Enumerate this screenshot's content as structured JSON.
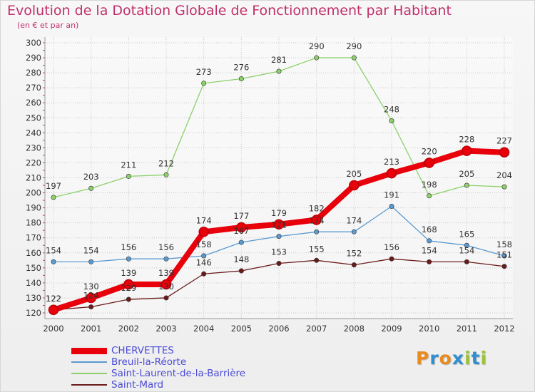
{
  "title": "Evolution de la Dotation Globale de Fonctionnement par Habitant",
  "subtitle": "(en € et par an)",
  "logo": {
    "letters": [
      "P",
      "r",
      "o",
      "x",
      "i",
      "t",
      "i"
    ],
    "colors": [
      "#e98b21",
      "#2f8fcf",
      "#e98b21",
      "#2f8fcf",
      "#9bc43d",
      "#2f8fcf",
      "#9bc43d"
    ]
  },
  "chart_data": {
    "type": "line",
    "title": "Evolution de la Dotation Globale de Fonctionnement par Habitant",
    "subtitle": "(en € et par an)",
    "x": [
      "2000",
      "2001",
      "2002",
      "2003",
      "2004",
      "2005",
      "2006",
      "2007",
      "2008",
      "2009",
      "2010",
      "2011",
      "2012"
    ],
    "ylim": [
      120,
      300
    ],
    "yticks": [
      120,
      130,
      140,
      150,
      160,
      170,
      180,
      190,
      200,
      210,
      220,
      230,
      240,
      250,
      260,
      270,
      280,
      290,
      300
    ],
    "grid": true,
    "legend_position": "bottom-left",
    "series": [
      {
        "name": "CHERVETTES",
        "color": "#e8000b",
        "values": [
          122,
          130,
          139,
          139,
          174,
          177,
          179,
          182,
          205,
          213,
          220,
          228,
          227
        ],
        "labels": [
          "122",
          "130",
          "139",
          "139",
          "174",
          "177",
          "179",
          "182",
          "205",
          "213",
          "220",
          "228",
          "227"
        ]
      },
      {
        "name": "Breuil-la-Réorte",
        "color": "#5a9ad0",
        "values": [
          154,
          154,
          156,
          156,
          158,
          167,
          171,
          174,
          174,
          191,
          168,
          165,
          158
        ],
        "labels": [
          "154",
          "154",
          "156",
          "156",
          "158",
          "167",
          "171",
          "174",
          "174",
          "191",
          "168",
          "165",
          "158"
        ]
      },
      {
        "name": "Saint-Laurent-de-la-Barrière",
        "color": "#8cd06a",
        "values": [
          197,
          203,
          211,
          212,
          273,
          276,
          281,
          290,
          290,
          248,
          198,
          205,
          204
        ],
        "labels": [
          "197",
          "203",
          "211",
          "212",
          "273",
          "276",
          "281",
          "290",
          "290",
          "248",
          "198",
          "205",
          "204"
        ]
      },
      {
        "name": "Saint-Mard",
        "color": "#6b1a1a",
        "values": [
          122,
          124,
          129,
          130,
          146,
          148,
          153,
          155,
          152,
          156,
          154,
          154,
          151
        ],
        "labels": [
          "122",
          "124",
          "129",
          "130",
          "146",
          "148",
          "153",
          "155",
          "152",
          "156",
          "154",
          "154",
          "151"
        ]
      }
    ]
  }
}
